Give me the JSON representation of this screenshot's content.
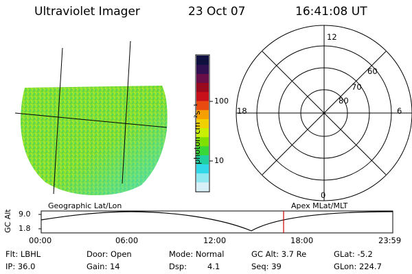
{
  "header": {
    "instrument": "Ultraviolet Imager",
    "date": "23 Oct 07",
    "time": "16:41:08 UT"
  },
  "colorbar": {
    "unit_label": "photon cm⁻²s⁻¹",
    "ticks": [
      "100",
      "10"
    ],
    "colors": [
      "#101040",
      "#301050",
      "#6a0e4a",
      "#9a0a1e",
      "#c8101a",
      "#e84a10",
      "#f5a000",
      "#f0d000",
      "#c8f000",
      "#80e000",
      "#38d838",
      "#20d0a0",
      "#30d8e8",
      "#90e8f0",
      "#d8f0f8"
    ]
  },
  "geo_panel": {
    "label": "Geographic Lat/Lon",
    "fill_color": "#84de33"
  },
  "polar_panel": {
    "label": "Apex MLat/MLT",
    "mlt_labels": [
      "12",
      "18",
      "6",
      "0"
    ],
    "lat_labels": [
      "60",
      "70",
      "80"
    ]
  },
  "timeline": {
    "ylabel": "GC Alt",
    "y_ticks": [
      "9.0",
      "1.8"
    ],
    "x_ticks": [
      "00:00",
      "06:00",
      "12:00",
      "18:00",
      "23:59"
    ],
    "marker_color": "#cc0000"
  },
  "status": {
    "filter": "Flt: LBHL",
    "door": "Door: Open",
    "mode": "Mode: Normal",
    "gc_alt": "GC Alt: 3.7 Re",
    "glat": "GLat:  -5.2",
    "ip": "IP: 36.0",
    "gain": "Gain: 14",
    "dsp_label": "Dsp:",
    "dsp_value": "4.1",
    "seq": "Seq: 39",
    "glon": "GLon: 224.7"
  }
}
